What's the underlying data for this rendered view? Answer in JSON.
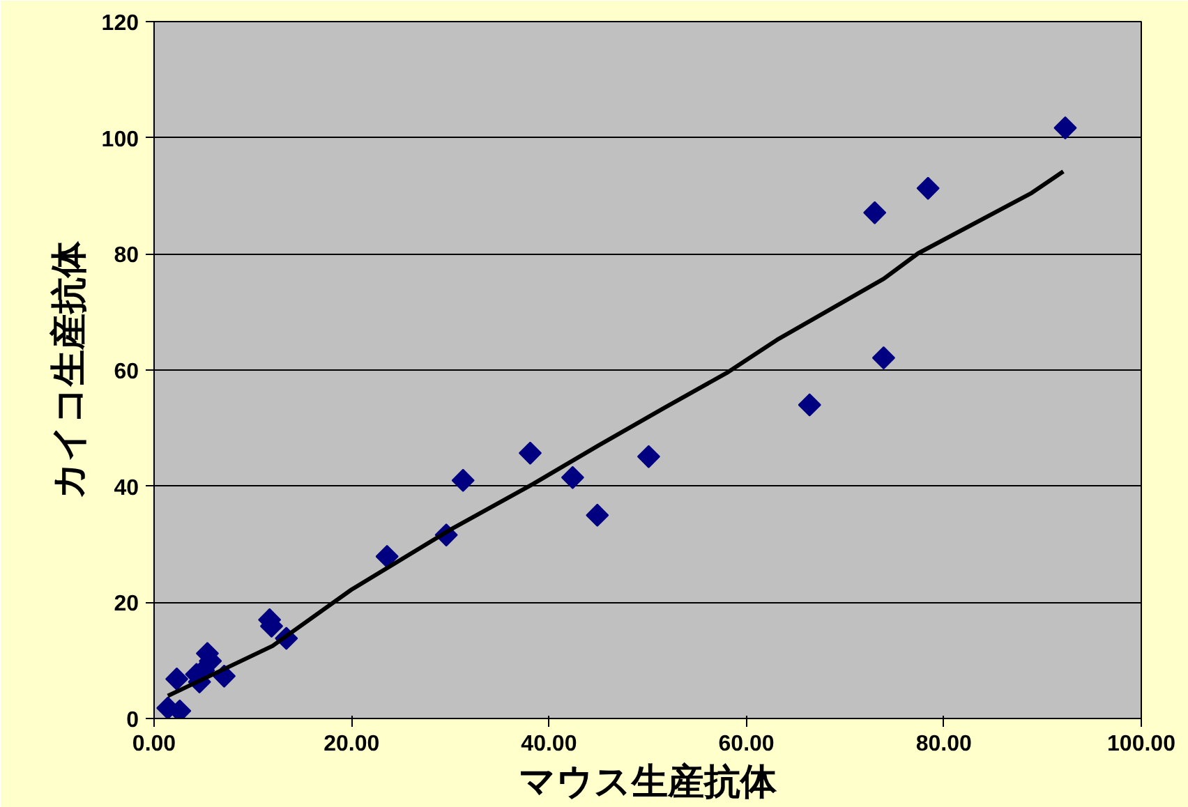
{
  "chart_data": {
    "type": "scatter",
    "xlabel": "マウス生産抗体",
    "ylabel": "カイコ生産抗体",
    "xlim": [
      0,
      100
    ],
    "ylim": [
      0,
      120
    ],
    "xticks": [
      {
        "value": 0,
        "label": "0.00"
      },
      {
        "value": 20,
        "label": "20.00"
      },
      {
        "value": 40,
        "label": "40.00"
      },
      {
        "value": 60,
        "label": "60.00"
      },
      {
        "value": 80,
        "label": "80.00"
      },
      {
        "value": 100,
        "label": "100.00"
      }
    ],
    "yticks": [
      0,
      20,
      40,
      60,
      80,
      100,
      120
    ],
    "grid": "y",
    "marker": "diamond",
    "series": [
      {
        "color": "#000080",
        "x": [
          1.4,
          2.6,
          2.3,
          4.6,
          4.3,
          5.4,
          5.7,
          5.0,
          7.1,
          11.7,
          11.9,
          13.4,
          23.6,
          29.6,
          31.3,
          38.1,
          42.4,
          44.9,
          50.1,
          66.4,
          73.0,
          73.9,
          78.4,
          92.3
        ],
        "values": [
          1.8,
          1.3,
          6.8,
          6.3,
          7.6,
          11.2,
          9.9,
          8.3,
          7.3,
          17,
          15.9,
          13.8,
          27.9,
          31.6,
          41,
          45.7,
          41.5,
          35,
          45.1,
          54,
          87.1,
          62.1,
          91.3,
          101.7
        ]
      },
      {
        "type": "line",
        "color": "#000000",
        "marker": "none",
        "line_style": "solid",
        "x": [
          1.4,
          12,
          20,
          30,
          38.4,
          45,
          51.7,
          58,
          63.1,
          73.9,
          77.4,
          88.9,
          92.1
        ],
        "values": [
          3.9,
          12.5,
          22.2,
          32.5,
          40.4,
          47,
          53.5,
          59.5,
          65.2,
          75.7,
          80.1,
          90.5,
          94.2
        ]
      }
    ]
  }
}
